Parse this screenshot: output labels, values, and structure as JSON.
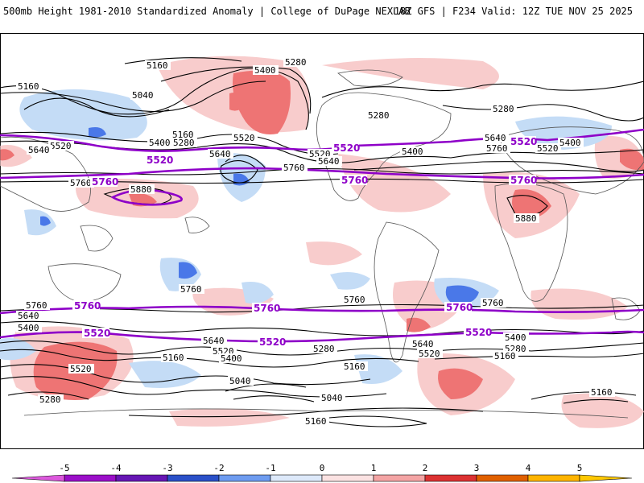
{
  "header": {
    "title": "500mb Height 1981-2010 Standardized Anomaly | College of DuPage NEXLAB",
    "run_info": "18Z GFS | F234 Valid: 12Z TUE NOV 25 2025"
  },
  "colorbar": {
    "ticks": [
      "-5",
      "-4",
      "-3",
      "-2",
      "-1",
      "0",
      "1",
      "2",
      "3",
      "4",
      "5"
    ],
    "colors": [
      "#dc58dc",
      "#7a0ab6",
      "#1c3fae",
      "#4a78e8",
      "#c4dcf6",
      "#ffffff",
      "#f8cccc",
      "#ee7474",
      "#c41818",
      "#f08c00",
      "#ffc800"
    ]
  },
  "contour_labels": {
    "c5160": "5160",
    "c5040": "5040",
    "c5280": "5280",
    "c5400": "5400",
    "c5520": "5520",
    "c5640": "5640",
    "c5760": "5760",
    "c5880": "5880"
  },
  "colors": {
    "purple": "#8e00c8",
    "neg_light": "#c4dcf6",
    "neg_mid": "#4a78e8",
    "pos_light": "#f8cccc",
    "pos_mid": "#ee7474"
  }
}
